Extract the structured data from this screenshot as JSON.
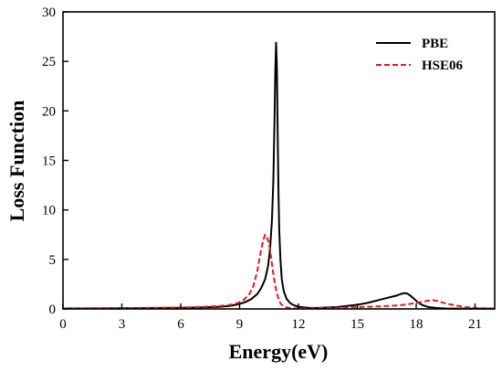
{
  "chart_data": {
    "type": "line",
    "title": "",
    "xlabel": "Energy(eV)",
    "ylabel": "Loss Function",
    "xlim": [
      0,
      22
    ],
    "ylim": [
      0,
      30
    ],
    "xticks": [
      0,
      3,
      6,
      9,
      12,
      15,
      18,
      21
    ],
    "yticks": [
      0,
      5,
      10,
      15,
      20,
      25,
      30
    ],
    "grid": false,
    "legend_position": "top-right",
    "series": [
      {
        "name": "PBE",
        "color": "#000000",
        "style": "solid",
        "x": [
          0,
          2,
          4,
          6,
          7,
          8,
          8.5,
          9,
          9.3,
          9.6,
          9.9,
          10.1,
          10.3,
          10.45,
          10.55,
          10.65,
          10.72,
          10.78,
          10.82,
          10.86,
          10.9,
          10.94,
          10.98,
          11.02,
          11.08,
          11.15,
          11.25,
          11.4,
          11.6,
          11.8,
          12,
          12.5,
          13,
          14,
          15,
          15.5,
          16,
          16.5,
          17,
          17.2,
          17.4,
          17.55,
          17.7,
          17.9,
          18.1,
          18.3,
          18.6,
          19,
          19.5,
          20,
          21,
          22
        ],
        "y": [
          0.05,
          0.06,
          0.08,
          0.12,
          0.15,
          0.22,
          0.3,
          0.5,
          0.7,
          1.0,
          1.5,
          2.1,
          3.0,
          4.3,
          6.0,
          9.0,
          13.0,
          19.0,
          24.0,
          26.9,
          24.5,
          18.0,
          12.0,
          8.0,
          5.0,
          3.0,
          1.8,
          1.0,
          0.55,
          0.35,
          0.22,
          0.12,
          0.1,
          0.2,
          0.42,
          0.6,
          0.85,
          1.1,
          1.35,
          1.5,
          1.6,
          1.55,
          1.35,
          1.0,
          0.65,
          0.4,
          0.2,
          0.1,
          0.05,
          0.04,
          0.03,
          0.02
        ]
      },
      {
        "name": "HSE06",
        "color": "#e8191d",
        "style": "dashed",
        "x": [
          0,
          2,
          4,
          6,
          7,
          8,
          8.5,
          8.9,
          9.2,
          9.5,
          9.7,
          9.9,
          10.05,
          10.2,
          10.3,
          10.4,
          10.5,
          10.6,
          10.7,
          10.8,
          10.9,
          11.0,
          11.1,
          11.25,
          11.4,
          11.6,
          11.8,
          12,
          12.5,
          13,
          14,
          15,
          16,
          16.5,
          17,
          17.5,
          18,
          18.4,
          18.8,
          19.1,
          19.5,
          20,
          20.5,
          21,
          22
        ],
        "y": [
          0.05,
          0.07,
          0.1,
          0.15,
          0.2,
          0.3,
          0.4,
          0.6,
          0.9,
          1.5,
          2.3,
          3.8,
          5.5,
          6.9,
          7.5,
          7.2,
          6.6,
          5.3,
          3.8,
          2.5,
          1.6,
          0.9,
          0.5,
          0.25,
          0.15,
          0.08,
          0.05,
          0.05,
          0.06,
          0.08,
          0.12,
          0.18,
          0.25,
          0.3,
          0.35,
          0.45,
          0.6,
          0.75,
          0.9,
          0.8,
          0.55,
          0.35,
          0.2,
          0.1,
          0.05
        ]
      }
    ]
  }
}
